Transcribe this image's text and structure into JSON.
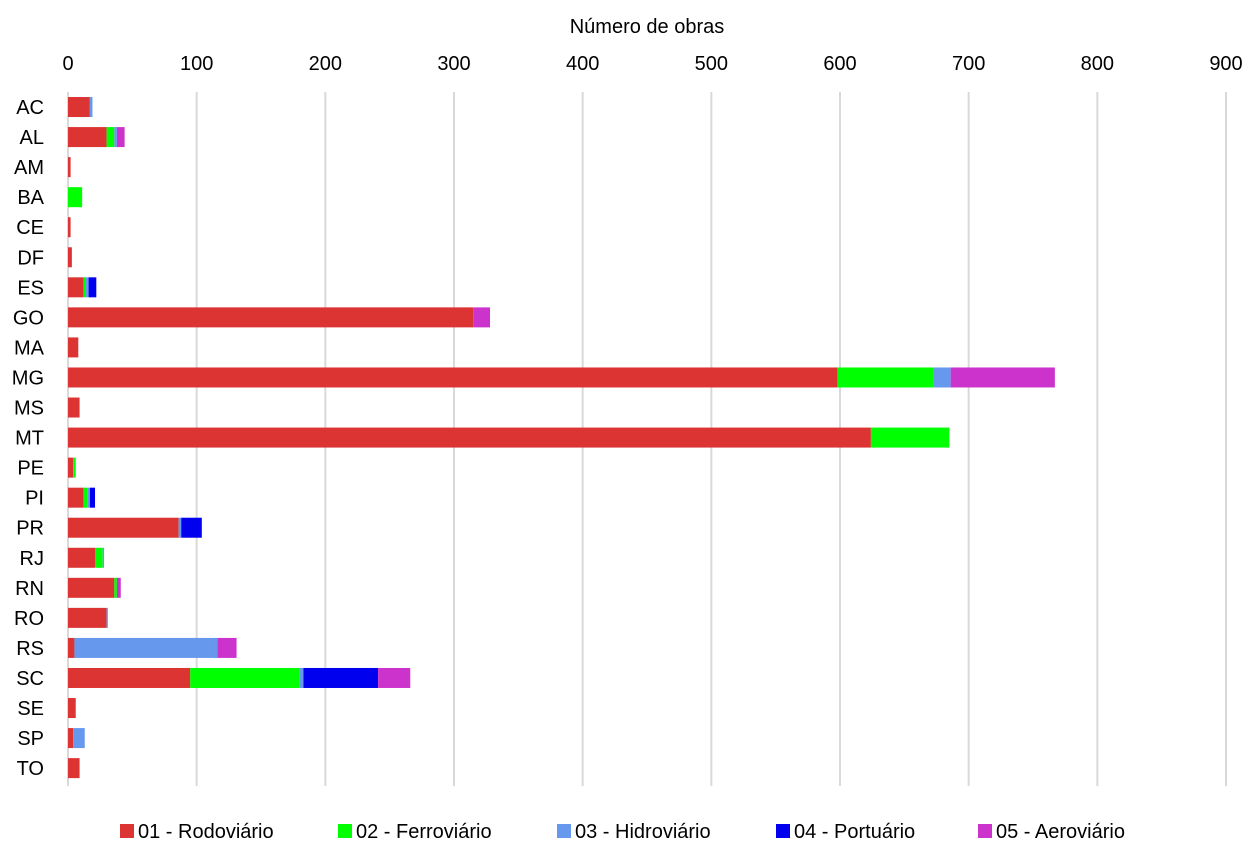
{
  "chart_data": {
    "type": "bar",
    "orientation": "horizontal",
    "stacked": true,
    "title": "",
    "xlabel": "Número de obras",
    "ylabel": "",
    "xlim": [
      0,
      900
    ],
    "xticks": [
      "0",
      "100",
      "200",
      "300",
      "400",
      "500",
      "600",
      "700",
      "800",
      "900"
    ],
    "grid": true,
    "legend_position": "bottom",
    "categories": [
      "AC",
      "AL",
      "AM",
      "BA",
      "CE",
      "DF",
      "ES",
      "GO",
      "MA",
      "MG",
      "MS",
      "MT",
      "PE",
      "PI",
      "PR",
      "RJ",
      "RN",
      "RO",
      "RS",
      "SC",
      "SE",
      "SP",
      "TO"
    ],
    "series": [
      {
        "name": "01 - Rodoviário",
        "color": "#dc3333",
        "values": [
          17,
          30,
          2,
          0,
          2,
          3,
          12,
          315,
          8,
          598,
          9,
          624,
          4,
          12,
          86,
          21,
          36,
          30,
          5,
          95,
          6,
          4,
          9
        ]
      },
      {
        "name": "02 - Ferroviário",
        "color": "#00ff00",
        "values": [
          0,
          6,
          0,
          11,
          0,
          0,
          2,
          0,
          0,
          75,
          0,
          61,
          2,
          3,
          0,
          6,
          2,
          0,
          0,
          85,
          0,
          0,
          0
        ]
      },
      {
        "name": "03 - Hidroviário",
        "color": "#6699ee",
        "values": [
          2,
          2,
          0,
          0,
          0,
          0,
          2,
          0,
          0,
          13,
          0,
          0,
          0,
          2,
          2,
          1,
          0,
          1,
          111,
          3,
          0,
          9,
          0
        ]
      },
      {
        "name": "04 - Portuário",
        "color": "#0000ee",
        "values": [
          0,
          0,
          0,
          0,
          0,
          0,
          6,
          0,
          0,
          0,
          0,
          0,
          0,
          4,
          16,
          0,
          0,
          0,
          0,
          58,
          0,
          0,
          0
        ]
      },
      {
        "name": "05 - Aeroviário",
        "color": "#cc33cc",
        "values": [
          0,
          6,
          0,
          0,
          0,
          0,
          0,
          13,
          0,
          81,
          0,
          0,
          0,
          0,
          0,
          0,
          3,
          0,
          15,
          25,
          0,
          0,
          0
        ]
      }
    ]
  }
}
